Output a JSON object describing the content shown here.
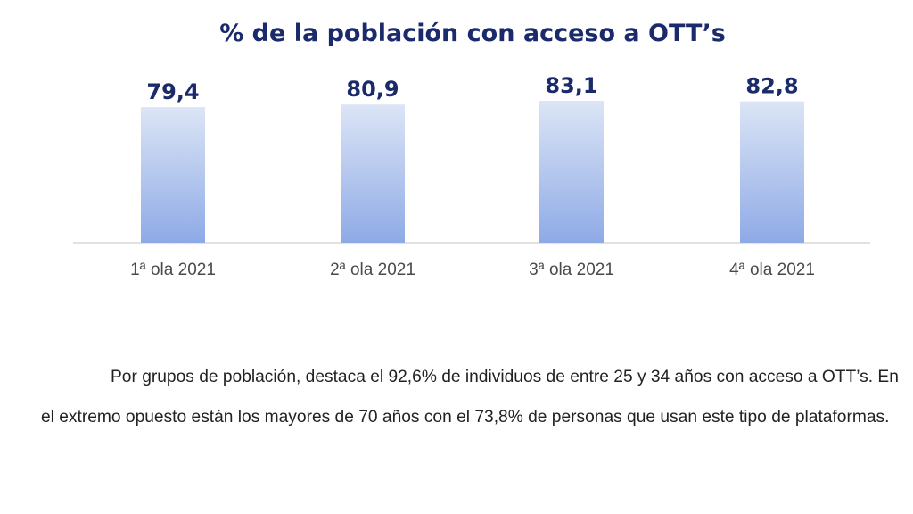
{
  "chart_data": {
    "type": "bar",
    "title": "% de la población con acceso a OTT’s",
    "categories": [
      "1ª ola 2021",
      "2ª ola 2021",
      "3ª ola 2021",
      "4ª ola 2021"
    ],
    "values": [
      79.4,
      80.9,
      83.1,
      82.8
    ],
    "value_labels": [
      "79,4",
      "80,9",
      "83,1",
      "82,8"
    ],
    "xlabel": "",
    "ylabel": "",
    "grid": false,
    "colors": {
      "bar_top": "#dce5f6",
      "bar_bottom": "#8eaae6",
      "label": "#1b2a6b",
      "axis": "#d9d9d9"
    }
  },
  "paragraph": "Por grupos de población, destaca el 92,6% de individuos de entre 25 y 34 años con acceso a OTT’s. En el extremo opuesto están los mayores de 70 años con el 73,8% de personas que usan este tipo de plataformas."
}
